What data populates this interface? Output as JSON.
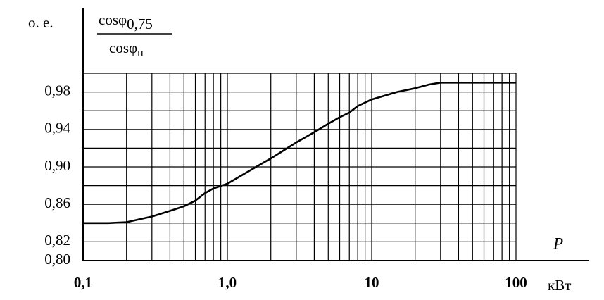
{
  "chart_data": {
    "type": "line",
    "y_unit": "о. е.",
    "y_label": {
      "numerator": "cosφ",
      "numerator_sub": "0,75",
      "denominator": "cosφ",
      "denominator_sub": "н"
    },
    "x_label": "P",
    "x_unit": "кВт",
    "x_log": true,
    "xlim": [
      0.1,
      100
    ],
    "ylim": [
      0.8,
      1.0
    ],
    "xticks": [
      {
        "value": 0.1,
        "label": "0,1"
      },
      {
        "value": 1,
        "label": "1,0"
      },
      10,
      100
    ],
    "yticks": [
      {
        "value": 0.8,
        "label": "0,80"
      },
      {
        "value": 0.82,
        "label": "0,82"
      },
      {
        "value": 0.86,
        "label": "0,86"
      },
      {
        "value": 0.9,
        "label": "0,90"
      },
      {
        "value": 0.94,
        "label": "0,94"
      },
      {
        "value": 0.98,
        "label": "0,98"
      }
    ],
    "xgrid": [
      0.1,
      0.2,
      0.3,
      0.4,
      0.5,
      0.6,
      0.7,
      0.8,
      0.9,
      1,
      2,
      3,
      4,
      5,
      6,
      7,
      8,
      9,
      10,
      20,
      30,
      40,
      50,
      60,
      70,
      80,
      90,
      100
    ],
    "ygrid": [
      0.82,
      0.84,
      0.86,
      0.88,
      0.9,
      0.92,
      0.94,
      0.96,
      0.98,
      1.0
    ],
    "x": [
      0.1,
      0.15,
      0.2,
      0.3,
      0.4,
      0.5,
      0.6,
      0.7,
      0.8,
      1.0,
      1.5,
      2,
      3,
      4,
      5,
      6,
      7,
      8,
      10,
      15,
      20,
      25,
      30,
      50,
      100
    ],
    "series": [
      {
        "color": "#000000",
        "values": [
          0.84,
          0.84,
          0.841,
          0.847,
          0.853,
          0.858,
          0.864,
          0.872,
          0.877,
          0.882,
          0.898,
          0.909,
          0.926,
          0.937,
          0.946,
          0.953,
          0.958,
          0.965,
          0.972,
          0.98,
          0.984,
          0.988,
          0.99,
          0.99,
          0.99
        ]
      }
    ]
  }
}
